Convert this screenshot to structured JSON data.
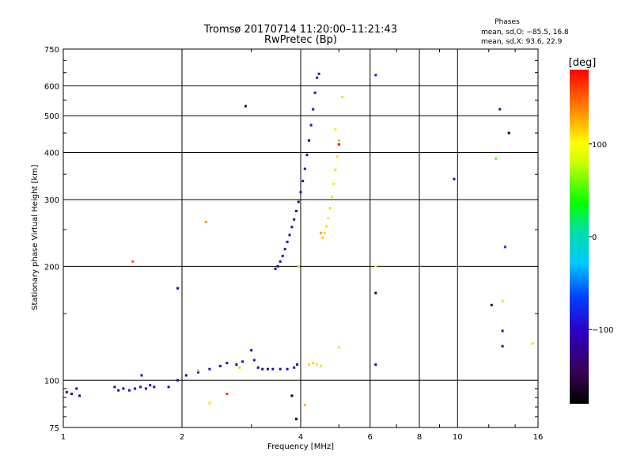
{
  "chart_data": {
    "type": "scatter",
    "title": "Tromsø 20170714 11:20:00–11:21:43",
    "subtitle": "RwPretec (Bp)",
    "xlabel": "Frequency [MHz]",
    "ylabel": "Stationary phase Virtual Height [km]",
    "x_scale": "log",
    "y_scale": "log",
    "xlim": [
      1,
      16
    ],
    "ylim": [
      75,
      750
    ],
    "x_ticks": [
      "1",
      "2",
      "4",
      "6",
      "8",
      "10",
      "16"
    ],
    "y_ticks": [
      "75",
      "100",
      "200",
      "300",
      "400",
      "500",
      "600",
      "750"
    ],
    "grid": true,
    "stats_title": "Phases",
    "stats_lines": [
      "mean, sd,O: −85.5, 16.8",
      "mean, sd,X:  93.6, 22.9"
    ],
    "colorbar": {
      "label": "[deg]",
      "range": [
        -180,
        180
      ],
      "ticks": [
        "100",
        "0",
        "−100"
      ]
    },
    "series": [
      {
        "mode": "O",
        "points": [
          [
            1.02,
            93,
            -130
          ],
          [
            1.05,
            92,
            -130
          ],
          [
            1.08,
            95,
            -128
          ],
          [
            1.1,
            91,
            -132
          ],
          [
            1.35,
            96,
            -110
          ],
          [
            1.38,
            94,
            -112
          ],
          [
            1.42,
            95,
            -108
          ],
          [
            1.47,
            94,
            -105
          ],
          [
            1.52,
            95,
            -110
          ],
          [
            1.57,
            96,
            -106
          ],
          [
            1.62,
            95,
            -108
          ],
          [
            1.66,
            97,
            -104
          ],
          [
            1.7,
            96,
            -106
          ],
          [
            1.58,
            103,
            -110
          ],
          [
            1.85,
            96,
            -110
          ],
          [
            1.95,
            100,
            -108
          ],
          [
            2.05,
            103,
            -110
          ],
          [
            2.2,
            105,
            -112
          ],
          [
            2.35,
            107,
            -110
          ],
          [
            2.5,
            109,
            -108
          ],
          [
            2.6,
            111,
            -112
          ],
          [
            2.75,
            110,
            -110
          ],
          [
            2.85,
            112,
            -108
          ],
          [
            3.0,
            120,
            -112
          ],
          [
            3.05,
            113,
            -110
          ],
          [
            3.12,
            108,
            -114
          ],
          [
            3.2,
            107,
            -110
          ],
          [
            3.3,
            107,
            -112
          ],
          [
            3.4,
            107,
            -110
          ],
          [
            3.55,
            107,
            -112
          ],
          [
            3.7,
            107,
            -110
          ],
          [
            3.85,
            108,
            -110
          ],
          [
            3.92,
            110,
            -108
          ],
          [
            3.45,
            197,
            -110
          ],
          [
            3.5,
            200,
            -112
          ],
          [
            3.55,
            206,
            -110
          ],
          [
            3.6,
            213,
            -108
          ],
          [
            3.65,
            222,
            -110
          ],
          [
            3.7,
            232,
            -112
          ],
          [
            3.75,
            242,
            -110
          ],
          [
            3.8,
            254,
            -108
          ],
          [
            3.85,
            266,
            -110
          ],
          [
            3.9,
            280,
            -112
          ],
          [
            3.95,
            296,
            -110
          ],
          [
            4.0,
            314,
            -112
          ],
          [
            4.05,
            336,
            -110
          ],
          [
            4.1,
            362,
            -112
          ],
          [
            4.15,
            394,
            -110
          ],
          [
            4.2,
            430,
            -112
          ],
          [
            4.25,
            472,
            -110
          ],
          [
            4.3,
            520,
            -112
          ],
          [
            4.35,
            575,
            -110
          ],
          [
            4.4,
            630,
            -112
          ],
          [
            4.45,
            645,
            -110
          ],
          [
            2.9,
            530,
            -150
          ],
          [
            1.95,
            175,
            -110
          ],
          [
            6.2,
            110,
            -120
          ],
          [
            6.2,
            640,
            -85
          ],
          [
            9.8,
            340,
            -100
          ],
          [
            13.2,
            225,
            -70
          ],
          [
            13.0,
            135,
            -100
          ],
          [
            13.0,
            123,
            -110
          ],
          [
            13.5,
            450,
            -170
          ],
          [
            12.8,
            520,
            -140
          ],
          [
            12.2,
            158,
            -150
          ],
          [
            6.2,
            170,
            -160
          ],
          [
            3.9,
            79,
            -170
          ],
          [
            3.8,
            91,
            -180
          ]
        ]
      },
      {
        "mode": "X",
        "points": [
          [
            4.2,
            110,
            110
          ],
          [
            4.3,
            111,
            112
          ],
          [
            4.4,
            110,
            108
          ],
          [
            4.5,
            109,
            110
          ],
          [
            4.55,
            238,
            115
          ],
          [
            4.6,
            245,
            112
          ],
          [
            4.65,
            255,
            110
          ],
          [
            4.7,
            268,
            108
          ],
          [
            4.75,
            285,
            112
          ],
          [
            4.8,
            305,
            110
          ],
          [
            4.85,
            330,
            108
          ],
          [
            4.9,
            360,
            112
          ],
          [
            4.95,
            390,
            110
          ],
          [
            5.0,
            430,
            120
          ],
          [
            5.1,
            560,
            110
          ],
          [
            4.9,
            460,
            95
          ],
          [
            4.5,
            245,
            128
          ],
          [
            3.95,
            200,
            110
          ],
          [
            6.2,
            200,
            100
          ],
          [
            5.0,
            122,
            110
          ],
          [
            2.35,
            87,
            110
          ],
          [
            4.1,
            86,
            120
          ],
          [
            2.3,
            262,
            130
          ],
          [
            2.6,
            92,
            160
          ],
          [
            2.2,
            106,
            60
          ],
          [
            1.5,
            206,
            150
          ],
          [
            12.5,
            385,
            60
          ],
          [
            13.0,
            162,
            110
          ],
          [
            15.5,
            125,
            110
          ],
          [
            2.8,
            108,
            70
          ],
          [
            5.0,
            420,
            180
          ]
        ]
      }
    ]
  }
}
